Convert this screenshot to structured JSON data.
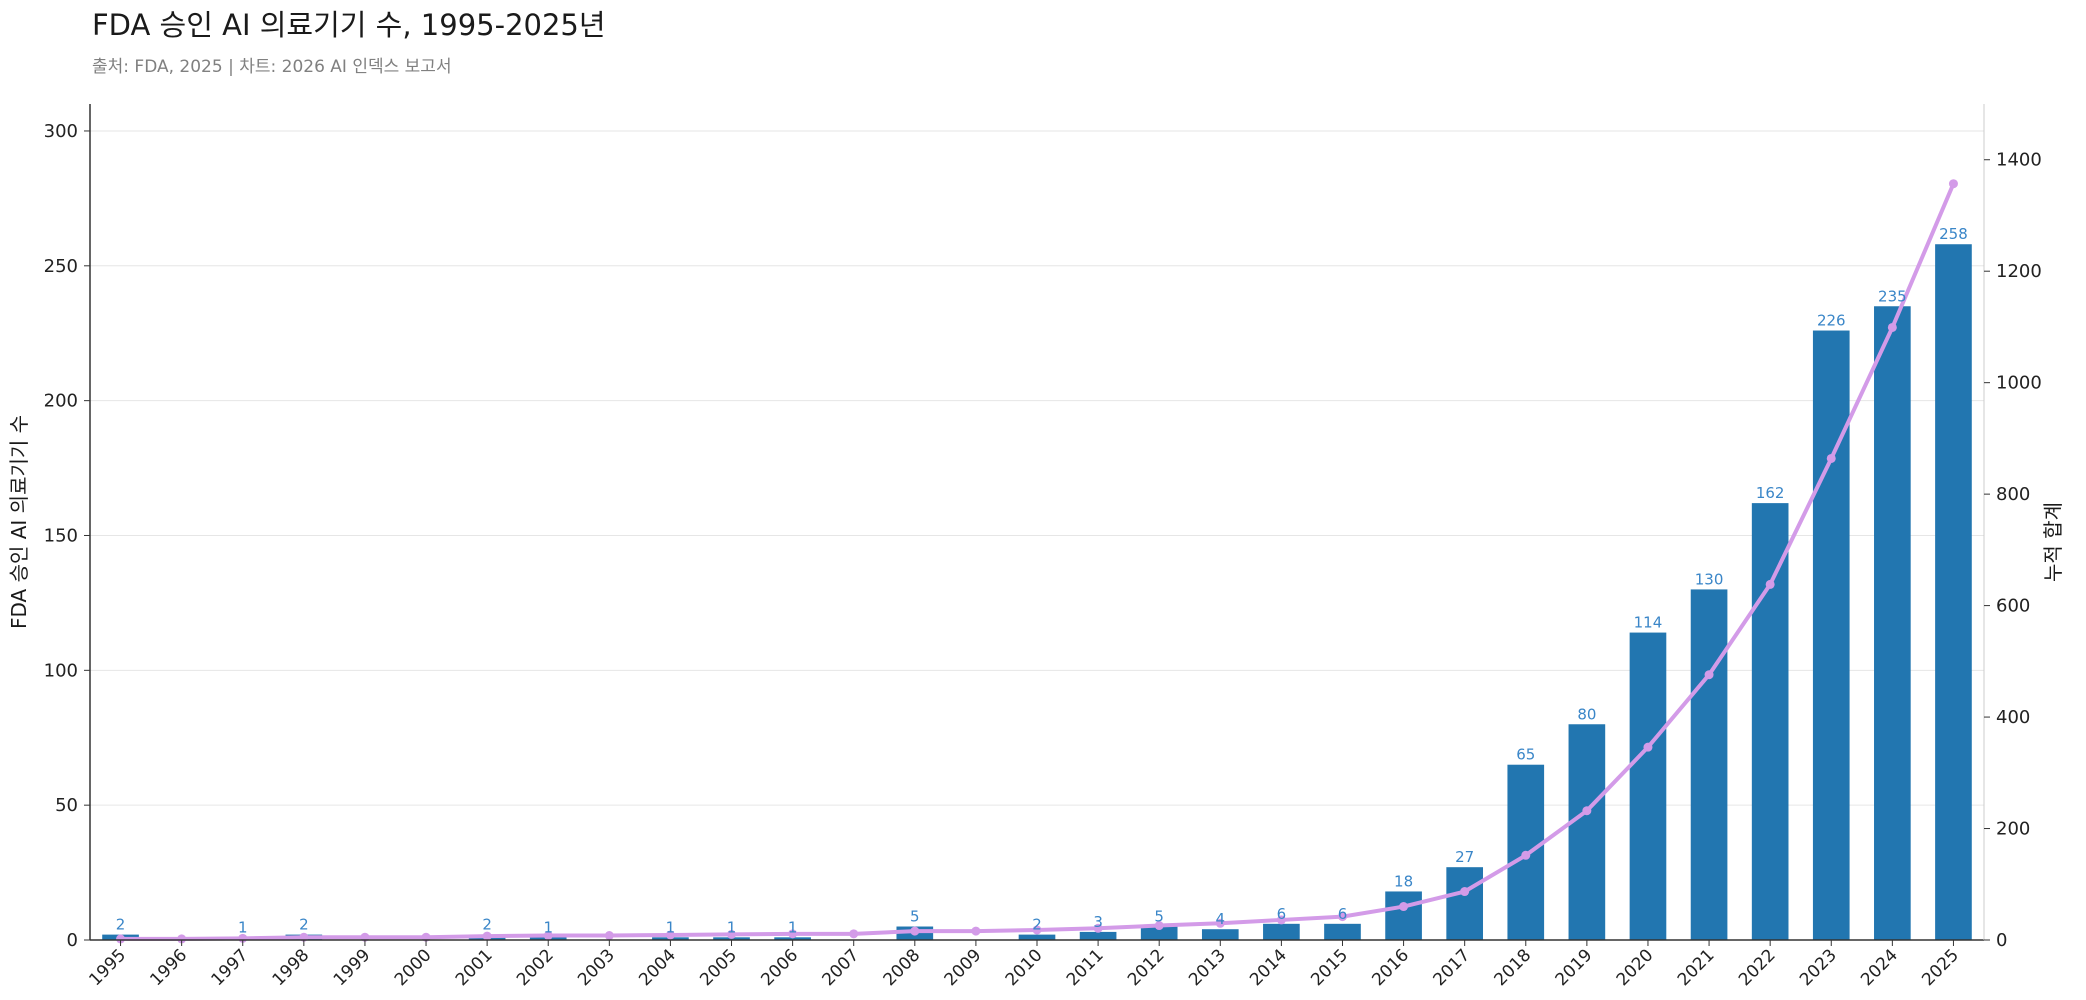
{
  "title": "FDA 승인 AI 의료기기 수, 1995-2025년",
  "subtitle": "출처: FDA, 2025 | 차트: 2026 AI 인덱스 보고서",
  "colors": {
    "bar": "#2276b0",
    "line": "#d39be8",
    "label": "#3a86c8"
  },
  "chart_data": {
    "type": "bar",
    "title": "FDA 승인 AI 의료기기 수, 1995-2025년",
    "categories": [
      "1995",
      "1996",
      "1997",
      "1998",
      "1999",
      "2000",
      "2001",
      "2002",
      "2003",
      "2004",
      "2005",
      "2006",
      "2007",
      "2008",
      "2009",
      "2010",
      "2011",
      "2012",
      "2013",
      "2014",
      "2015",
      "2016",
      "2017",
      "2018",
      "2019",
      "2020",
      "2021",
      "2022",
      "2023",
      "2024",
      "2025"
    ],
    "series": [
      {
        "type": "bar",
        "axis": "left",
        "values": [
          2,
          0,
          1,
          2,
          0,
          0,
          2,
          1,
          0,
          1,
          1,
          1,
          0,
          5,
          0,
          2,
          3,
          5,
          4,
          6,
          6,
          18,
          27,
          65,
          80,
          114,
          130,
          162,
          226,
          235,
          258
        ],
        "data_labels": [
          "2",
          "",
          "1",
          "2",
          "",
          "",
          "2",
          "1",
          "",
          "1",
          "1",
          "1",
          "",
          "5",
          "",
          "2",
          "3",
          "5",
          "4",
          "6",
          "6",
          "18",
          "27",
          "65",
          "80",
          "114",
          "130",
          "162",
          "226",
          "235",
          "258"
        ]
      },
      {
        "type": "line",
        "axis": "right",
        "values": [
          2,
          2,
          3,
          5,
          5,
          5,
          7,
          8,
          8,
          9,
          10,
          11,
          11,
          16,
          16,
          18,
          21,
          26,
          30,
          36,
          42,
          60,
          87,
          152,
          232,
          346,
          476,
          638,
          864,
          1099,
          1357
        ]
      }
    ],
    "ylabel": "FDA 승인 AI 의료기기 수",
    "ylim": [
      0,
      310
    ],
    "yticks": [
      0,
      50,
      100,
      150,
      200,
      250,
      300
    ],
    "y2label": "누적 합계",
    "y2lim": [
      0,
      1500
    ],
    "y2ticks": [
      0,
      200,
      400,
      600,
      800,
      1000,
      1200,
      1400
    ],
    "grid": true
  }
}
